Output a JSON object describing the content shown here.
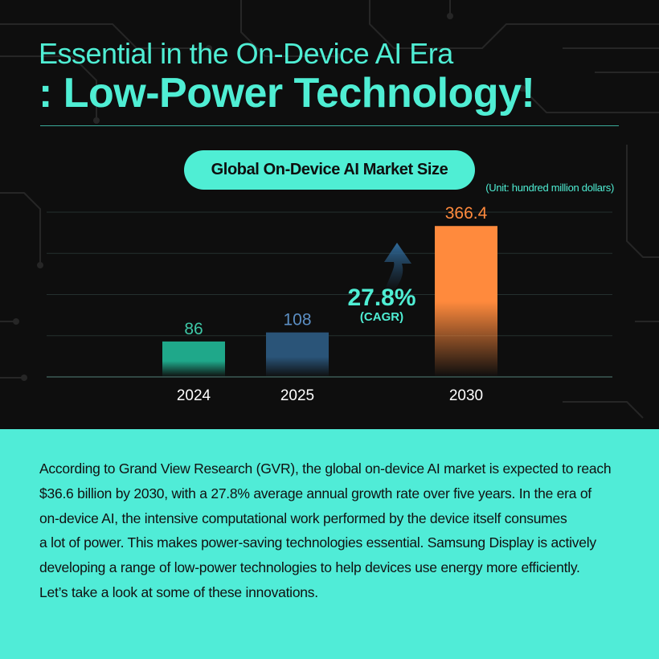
{
  "header": {
    "title_line1": "Essential in the On-Device AI Era",
    "title_line2": ": Low-Power Technology!"
  },
  "chart_data": {
    "type": "bar",
    "title": "Global On-Device AI Market Size",
    "unit_note": "(Unit: hundred million dollars)",
    "categories": [
      "2024",
      "2025",
      "2030"
    ],
    "values": [
      86,
      108,
      366.4
    ],
    "value_labels": [
      "86",
      "108",
      "366.4"
    ],
    "ylim": [
      0,
      400
    ],
    "grid": true,
    "colors": [
      "#1fa88a",
      "#2a5478",
      "#ff8a3d"
    ],
    "label_colors": [
      "#3ec7a6",
      "#5c8fc4",
      "#ff8a3d"
    ],
    "annotation": {
      "value": "27.8%",
      "caption": "(CAGR)",
      "icon": "curved-up-arrow-icon"
    }
  },
  "body": {
    "lines": [
      "According to Grand View Research (GVR), the global on-device AI market is expected to reach",
      "$36.6 billion by 2030, with a 27.8% average annual growth rate over five years. In the era of",
      "on-device AI, the intensive computational work performed by the device itself consumes",
      "a lot of power. This makes power-saving technologies essential. Samsung Display is actively",
      "developing a range of low-power technologies to help devices use energy more efficiently.",
      "Let’s take a look at some of these innovations."
    ]
  },
  "colors": {
    "accent": "#4feed4",
    "dark_bg": "#0e0e0e",
    "panel_bg": "#50ecd7"
  }
}
